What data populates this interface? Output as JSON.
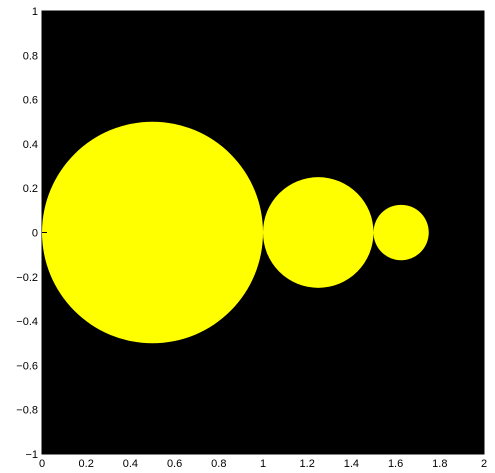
{
  "chart_data": {
    "type": "scatter",
    "title": "",
    "xlabel": "",
    "ylabel": "",
    "xlim": [
      0,
      2
    ],
    "ylim": [
      -1,
      1
    ],
    "grid": false,
    "background": "#000000",
    "x_ticks": [
      "0",
      "0.2",
      "0.4",
      "0.6",
      "0.8",
      "1",
      "1.2",
      "1.4",
      "1.6",
      "1.8",
      "2"
    ],
    "y_ticks": [
      "1",
      "0.8",
      "0.6",
      "0.4",
      "0.2",
      "0",
      "−0.2",
      "−0.4",
      "−0.6",
      "−0.8",
      "−1"
    ],
    "x_tick_values": [
      0,
      0.2,
      0.4,
      0.6,
      0.8,
      1,
      1.2,
      1.4,
      1.6,
      1.8,
      2
    ],
    "y_tick_values": [
      1,
      0.8,
      0.6,
      0.4,
      0.2,
      0,
      -0.2,
      -0.4,
      -0.6,
      -0.8,
      -1
    ],
    "circles": [
      {
        "cx": 0.5,
        "cy": 0,
        "r": 0.5,
        "color": "#ffff00"
      },
      {
        "cx": 1.25,
        "cy": 0,
        "r": 0.25,
        "color": "#ffff00"
      },
      {
        "cx": 1.625,
        "cy": 0,
        "r": 0.125,
        "color": "#ffff00"
      }
    ]
  }
}
